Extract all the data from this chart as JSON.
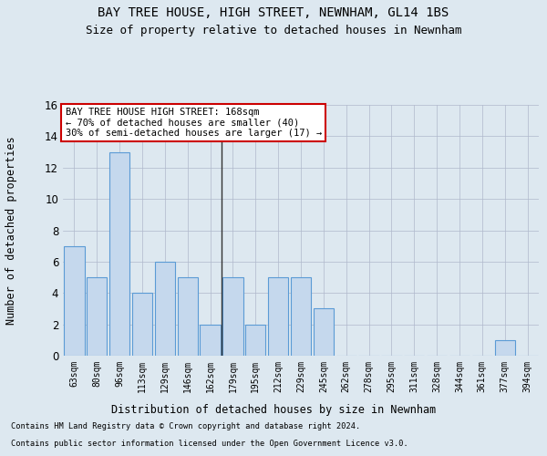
{
  "title1": "BAY TREE HOUSE, HIGH STREET, NEWNHAM, GL14 1BS",
  "title2": "Size of property relative to detached houses in Newnham",
  "xlabel": "Distribution of detached houses by size in Newnham",
  "ylabel": "Number of detached properties",
  "categories": [
    "63sqm",
    "80sqm",
    "96sqm",
    "113sqm",
    "129sqm",
    "146sqm",
    "162sqm",
    "179sqm",
    "195sqm",
    "212sqm",
    "229sqm",
    "245sqm",
    "262sqm",
    "278sqm",
    "295sqm",
    "311sqm",
    "328sqm",
    "344sqm",
    "361sqm",
    "377sqm",
    "394sqm"
  ],
  "values": [
    7,
    5,
    13,
    4,
    6,
    5,
    2,
    5,
    2,
    5,
    5,
    3,
    0,
    0,
    0,
    0,
    0,
    0,
    0,
    1,
    0
  ],
  "bar_color_normal": "#c5d8ed",
  "bar_edge_color": "#5b9bd5",
  "ylim": [
    0,
    16
  ],
  "yticks": [
    0,
    2,
    4,
    6,
    8,
    10,
    12,
    14,
    16
  ],
  "annotation_text": "BAY TREE HOUSE HIGH STREET: 168sqm\n← 70% of detached houses are smaller (40)\n30% of semi-detached houses are larger (17) →",
  "annotation_box_color": "#ffffff",
  "annotation_box_edge": "#cc0000",
  "vline_index": 6.5,
  "footer1": "Contains HM Land Registry data © Crown copyright and database right 2024.",
  "footer2": "Contains public sector information licensed under the Open Government Licence v3.0.",
  "bg_color": "#dde8f0",
  "plot_bg_color": "#dde8f0"
}
